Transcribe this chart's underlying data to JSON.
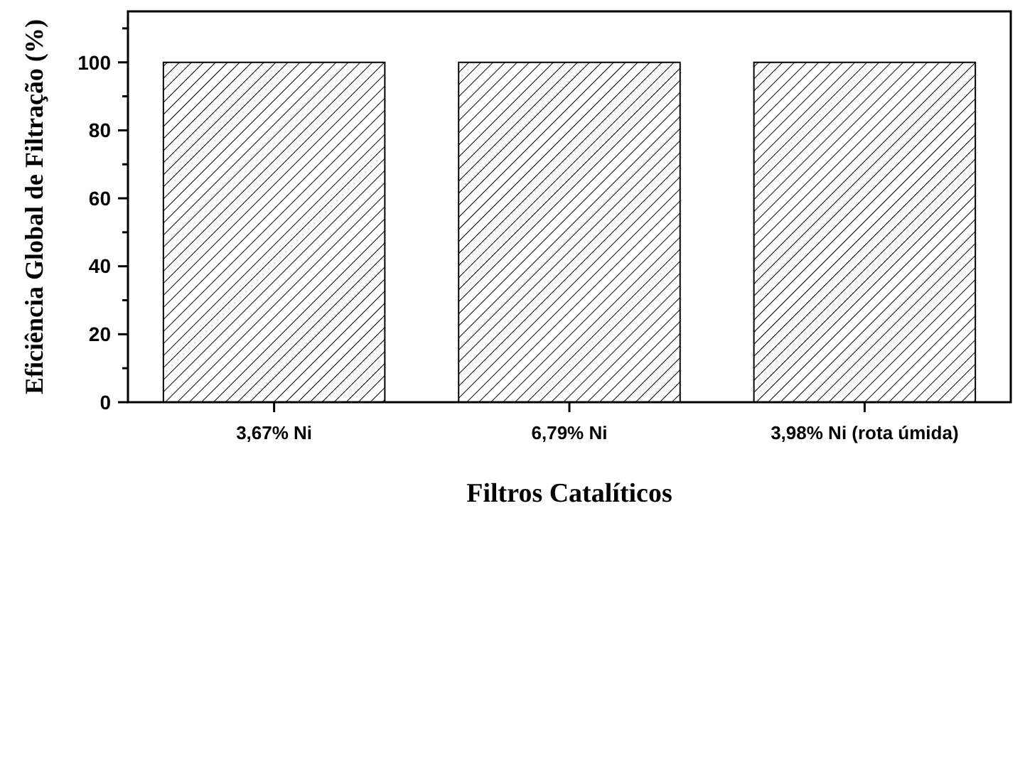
{
  "chart_data": {
    "type": "bar",
    "xlabel": "Filtros Catalíticos",
    "ylabel": "Eficiência Global de Filtração (%)",
    "categories": [
      "3,67% Ni",
      "6,79% Ni",
      "3,98% Ni (rota úmida)"
    ],
    "values": [
      100,
      100,
      100
    ],
    "color": "#000000",
    "ylim": [
      0,
      115
    ],
    "yticks": [
      0,
      {
        "value": 10,
        "label": null
      },
      20,
      {
        "value": 30,
        "label": null
      },
      40,
      {
        "value": 50,
        "label": null
      },
      60,
      {
        "value": 70,
        "label": null
      },
      80,
      {
        "value": 90,
        "label": null
      },
      100,
      {
        "value": 110,
        "label": null
      }
    ],
    "grid": false
  }
}
